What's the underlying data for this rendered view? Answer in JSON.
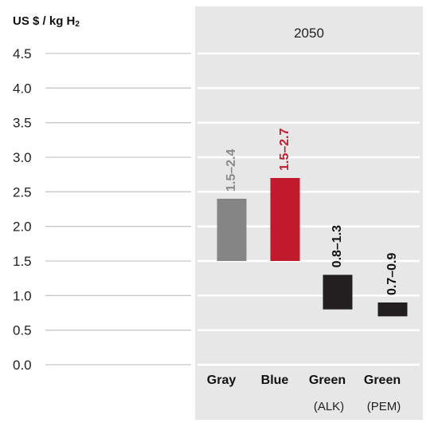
{
  "chart_data": {
    "type": "bar",
    "ylabel_main": "US $ / kg H",
    "ylabel_sub": "2",
    "panel_title": "2050",
    "yticks": [
      "4.5",
      "4.0",
      "3.5",
      "3.0",
      "2.5",
      "2.0",
      "1.5",
      "1.0",
      "0.5",
      "0.0"
    ],
    "ylim": [
      0,
      4.5
    ],
    "categories": [
      {
        "name": "Gray",
        "qualifier": "",
        "range_label": "1.5–2.4",
        "low": 1.5,
        "high": 2.4,
        "color": "#858585",
        "label_color": "#8a8a8a"
      },
      {
        "name": "Blue",
        "qualifier": "",
        "range_label": "1.5–2.7",
        "low": 1.5,
        "high": 2.7,
        "color": "#c01a2c",
        "label_color": "#c01a2c"
      },
      {
        "name": "Green",
        "qualifier": "(ALK)",
        "range_label": "0.8–1.3",
        "low": 0.8,
        "high": 1.3,
        "color": "#231f20",
        "label_color": "#111111"
      },
      {
        "name": "Green",
        "qualifier": "(PEM)",
        "range_label": "0.7–0.9",
        "low": 0.7,
        "high": 0.9,
        "color": "#231f20",
        "label_color": "#111111"
      }
    ],
    "grid": true
  }
}
